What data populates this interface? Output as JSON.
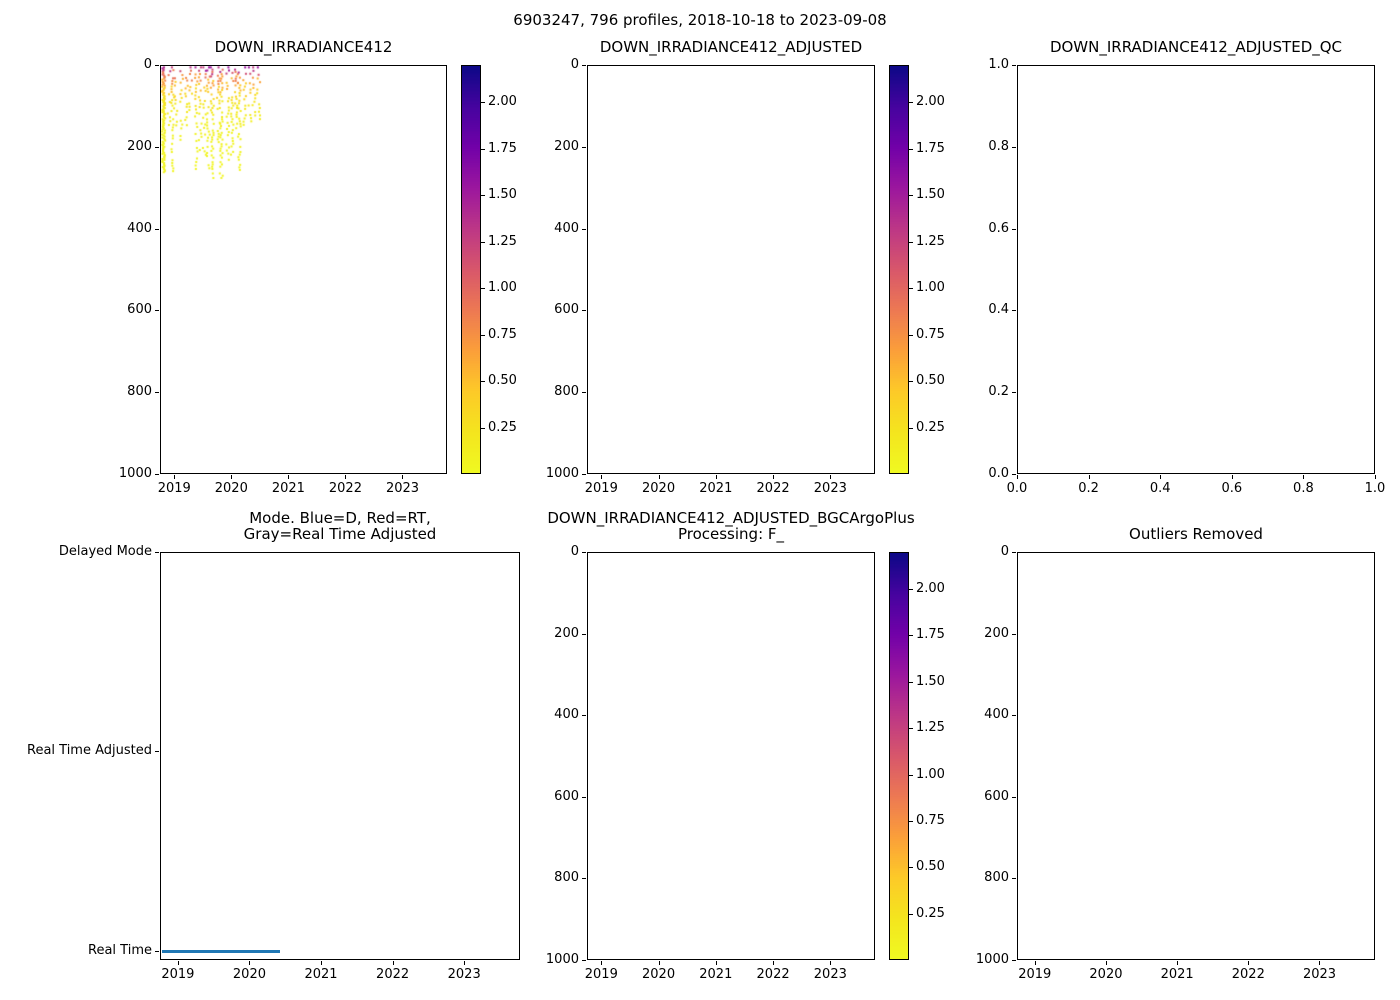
{
  "figure": {
    "suptitle": "6903247, 796 profiles, 2018-10-18 to 2023-09-08",
    "background": "#ffffff",
    "text_color": "#000000",
    "axes_color": "#000000"
  },
  "chart_data": [
    {
      "id": "down-irradiance412",
      "type": "scatter",
      "title_lines": [
        "DOWN_IRRADIANCE412"
      ],
      "x_range": [
        2018.75,
        2023.78
      ],
      "x_ticks": [
        2019,
        2020,
        2021,
        2022,
        2023
      ],
      "x_tick_labels": [
        "2019",
        "2020",
        "2021",
        "2022",
        "2023"
      ],
      "y_axis": "depth_m",
      "y_range": [
        0,
        1000
      ],
      "y_inverted": true,
      "y_ticks": [
        0,
        200,
        400,
        600,
        800,
        1000
      ],
      "y_tick_labels": [
        "0",
        "200",
        "400",
        "600",
        "800",
        "1000"
      ],
      "colorbar": {
        "colormap": "plasma_r",
        "vmin": 0.0,
        "vmax": 2.2,
        "ticks": [
          0.25,
          0.5,
          0.75,
          1.0,
          1.25,
          1.5,
          1.75,
          2.0
        ],
        "tick_labels": [
          "0.25",
          "0.50",
          "0.75",
          "1.00",
          "1.25",
          "1.50",
          "1.75",
          "2.00"
        ]
      },
      "scatter": {
        "description": "Profile scatter from late 2018 to mid 2020, depths 0-~280 m; low values ~0.05-0.3 (yellow) at depth, higher values ~0.8-1.5 (red/orange) near the surface; dense profile column at the left axis edge",
        "x_start": 2018.78,
        "x_end": 2020.45,
        "n_columns": 22,
        "depth_max": 280,
        "surface_value": 1.35,
        "decay_depth_m": 45,
        "value_clip": 1.55,
        "seed": 11
      }
    },
    {
      "id": "down-irradiance412-adjusted",
      "type": "scatter",
      "title_lines": [
        "DOWN_IRRADIANCE412_ADJUSTED"
      ],
      "x_range": [
        2018.75,
        2023.78
      ],
      "x_ticks": [
        2019,
        2020,
        2021,
        2022,
        2023
      ],
      "x_tick_labels": [
        "2019",
        "2020",
        "2021",
        "2022",
        "2023"
      ],
      "y_axis": "depth_m",
      "y_range": [
        0,
        1000
      ],
      "y_inverted": true,
      "y_ticks": [
        0,
        200,
        400,
        600,
        800,
        1000
      ],
      "y_tick_labels": [
        "0",
        "200",
        "400",
        "600",
        "800",
        "1000"
      ],
      "colorbar": {
        "colormap": "plasma_r",
        "vmin": 0.0,
        "vmax": 2.2,
        "ticks": [
          0.25,
          0.5,
          0.75,
          1.0,
          1.25,
          1.5,
          1.75,
          2.0
        ],
        "tick_labels": [
          "0.25",
          "0.50",
          "0.75",
          "1.00",
          "1.25",
          "1.50",
          "1.75",
          "2.00"
        ]
      },
      "scatter": null
    },
    {
      "id": "down-irradiance412-adjusted-qc",
      "type": "scatter",
      "title_lines": [
        "DOWN_IRRADIANCE412_ADJUSTED_QC"
      ],
      "x_range": [
        0,
        1
      ],
      "x_ticks": [
        0,
        0.2,
        0.4,
        0.6,
        0.8,
        1
      ],
      "x_tick_labels": [
        "0.0",
        "0.2",
        "0.4",
        "0.6",
        "0.8",
        "1.0"
      ],
      "y_range": [
        0,
        1
      ],
      "y_inverted": false,
      "y_ticks": [
        0,
        0.2,
        0.4,
        0.6,
        0.8,
        1
      ],
      "y_tick_labels": [
        "0.0",
        "0.2",
        "0.4",
        "0.6",
        "0.8",
        "1.0"
      ],
      "scatter": null
    },
    {
      "id": "mode",
      "type": "line",
      "title_lines": [
        "Mode. Blue=D, Red=RT,",
        "Gray=Real Time Adjusted"
      ],
      "x_range": [
        2018.75,
        2023.78
      ],
      "x_ticks": [
        2019,
        2020,
        2021,
        2022,
        2023
      ],
      "x_tick_labels": [
        "2019",
        "2020",
        "2021",
        "2022",
        "2023"
      ],
      "y_categories": [
        "Delayed Mode",
        "Real Time Adjusted",
        "Real Time"
      ],
      "series": [
        {
          "name": "real-time-mode-segment",
          "category": "Real Time",
          "color": "#1f77b4",
          "x_start": 2018.78,
          "x_end": 2020.42
        }
      ]
    },
    {
      "id": "down-irradiance412-adjusted-bgcargoplus",
      "type": "scatter",
      "title_lines": [
        "DOWN_IRRADIANCE412_ADJUSTED_BGCArgoPlus",
        "Processing: F_"
      ],
      "x_range": [
        2018.75,
        2023.78
      ],
      "x_ticks": [
        2019,
        2020,
        2021,
        2022,
        2023
      ],
      "x_tick_labels": [
        "2019",
        "2020",
        "2021",
        "2022",
        "2023"
      ],
      "y_axis": "depth_m",
      "y_range": [
        0,
        1000
      ],
      "y_inverted": true,
      "y_ticks": [
        0,
        200,
        400,
        600,
        800,
        1000
      ],
      "y_tick_labels": [
        "0",
        "200",
        "400",
        "600",
        "800",
        "1000"
      ],
      "colorbar": {
        "colormap": "plasma_r",
        "vmin": 0.0,
        "vmax": 2.2,
        "ticks": [
          0.25,
          0.5,
          0.75,
          1.0,
          1.25,
          1.5,
          1.75,
          2.0
        ],
        "tick_labels": [
          "0.25",
          "0.50",
          "0.75",
          "1.00",
          "1.25",
          "1.50",
          "1.75",
          "2.00"
        ]
      },
      "scatter": null
    },
    {
      "id": "outliers-removed",
      "type": "scatter",
      "title_lines": [
        "Outliers Removed"
      ],
      "x_range": [
        2018.75,
        2023.78
      ],
      "x_ticks": [
        2019,
        2020,
        2021,
        2022,
        2023
      ],
      "x_tick_labels": [
        "2019",
        "2020",
        "2021",
        "2022",
        "2023"
      ],
      "y_axis": "depth_m",
      "y_range": [
        0,
        1000
      ],
      "y_inverted": true,
      "y_ticks": [
        0,
        200,
        400,
        600,
        800,
        1000
      ],
      "y_tick_labels": [
        "0",
        "200",
        "400",
        "600",
        "800",
        "1000"
      ],
      "scatter": null
    }
  ]
}
